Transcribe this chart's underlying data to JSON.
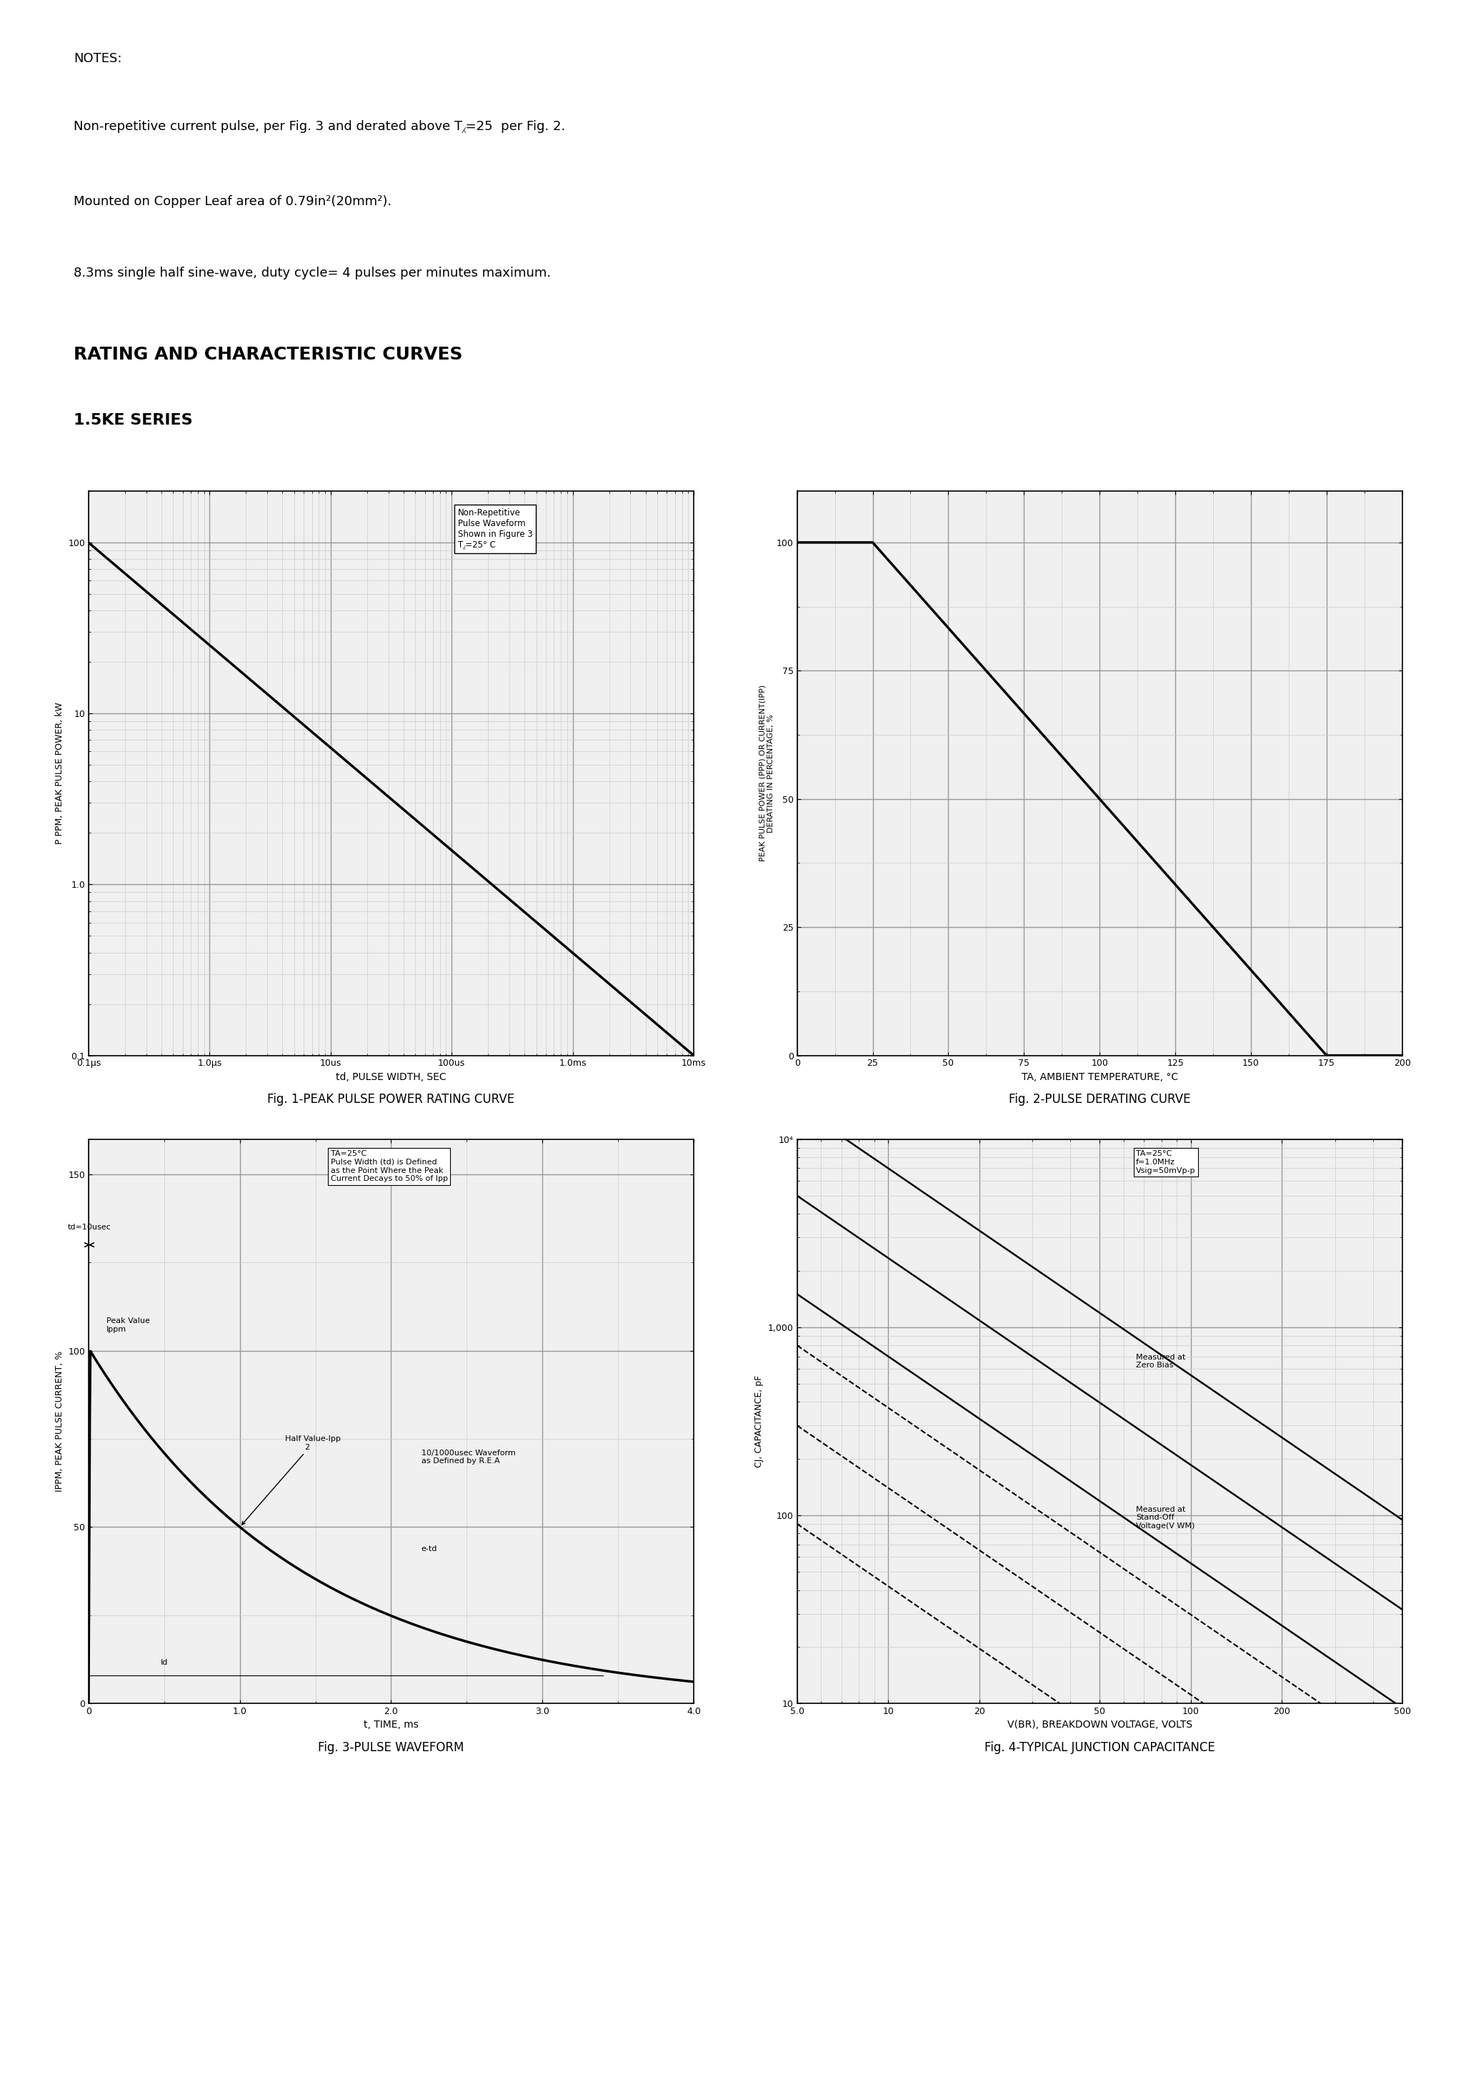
{
  "page_bg": "#ffffff",
  "notes_title": "NOTES:",
  "note1": "Non-repetitive current pulse, per Fig. 3 and derated above T⁁=25  per Fig. 2.",
  "note2": "Mounted on Copper Leaf area of 0.79in²(20mm²).",
  "note3": "8.3ms single half sine-wave, duty cycle= 4 pulses per minutes maximum.",
  "section_title": "RATING AND CHARACTERISTIC CURVES",
  "series_title": "1.5KE SERIES",
  "fig1_title": "Fig. 1-PEAK PULSE POWER RATING CURVE",
  "fig2_title": "Fig. 2-PULSE DERATING CURVE",
  "fig3_title": "Fig. 3-PULSE WAVEFORM",
  "fig4_title": "Fig. 4-TYPICAL JUNCTION CAPACITANCE",
  "fig1_ylabel": "P PPM, PEAK PULSE POWER, kW",
  "fig1_xlabel": "td, PULSE WIDTH, SEC",
  "fig1_legend_line1": "Non-Repetitive",
  "fig1_legend_line2": "Pulse Waveform",
  "fig1_legend_line3": "Shown in Figure 3",
  "fig1_legend_line4": "T⁁=25° C",
  "fig2_ylabel": "PEAK PULSE POWER (PPP) OR CURRENT(IPP)\nDERATING IN PERCENTAGE, %",
  "fig2_xlabel": "TA, AMBIENT TEMPERATURE, °C",
  "fig3_ylabel": "IPPM, PEAK PULSE CURRENT, %",
  "fig3_xlabel": "t, TIME, ms",
  "fig4_ylabel": "CJ, CAPACITANCE, pF",
  "fig4_xlabel": "V(BR), BREAKDOWN VOLTAGE, VOLTS",
  "grid_major_color": "#999999",
  "grid_minor_color": "#cccccc",
  "grid_major_lw": 1.0,
  "grid_minor_lw": 0.5,
  "line_color": "#000000",
  "line_lw": 2.5
}
